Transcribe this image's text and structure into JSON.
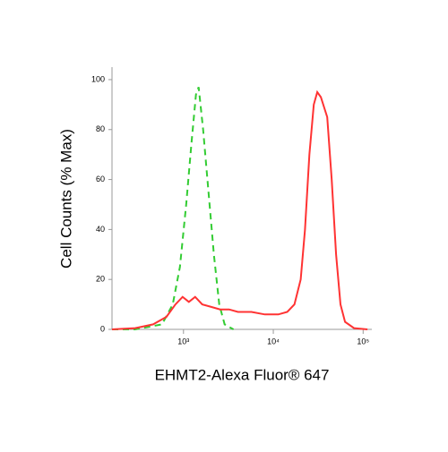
{
  "chart_data": {
    "type": "line",
    "xlabel": "EHMT2-Alexa Fluor® 647",
    "ylabel": "Cell Counts (% Max)",
    "xscale": "log",
    "xlim": [
      160,
      125000
    ],
    "ylim": [
      0,
      105
    ],
    "xticks": [
      {
        "value": 1000,
        "label": "10³"
      },
      {
        "value": 10000,
        "label": "10⁴"
      },
      {
        "value": 100000,
        "label": "10⁵"
      }
    ],
    "yticks": [
      0,
      20,
      40,
      60,
      80,
      100
    ],
    "series": [
      {
        "color": "#33cc33",
        "dash": true,
        "x": [
          160,
          290,
          577,
          760,
          912,
          1071,
          1229,
          1378,
          1476,
          1655,
          1899,
          2178,
          2500,
          2870,
          3605
        ],
        "values": [
          0,
          0,
          2,
          10,
          25,
          50,
          75,
          94,
          97,
          80,
          55,
          30,
          10,
          2,
          0
        ]
      },
      {
        "color": "#ff3333",
        "dash": false,
        "x": [
          160,
          290,
          459,
          647,
          813,
          977,
          1147,
          1347,
          1618,
          2034,
          2557,
          3214,
          4041,
          5704,
          8053,
          11370,
          14290,
          17170,
          20180,
          22540,
          25210,
          28190,
          30890,
          33860,
          39810,
          44650,
          50040,
          56000,
          62870,
          79080,
          111700
        ],
        "values": [
          0,
          0.5,
          2,
          5,
          10,
          13,
          11,
          13,
          10,
          9,
          8,
          8,
          7,
          7,
          6,
          6,
          7,
          10,
          20,
          40,
          70,
          90,
          95,
          93,
          85,
          60,
          30,
          10,
          3,
          0.5,
          0
        ]
      }
    ]
  }
}
